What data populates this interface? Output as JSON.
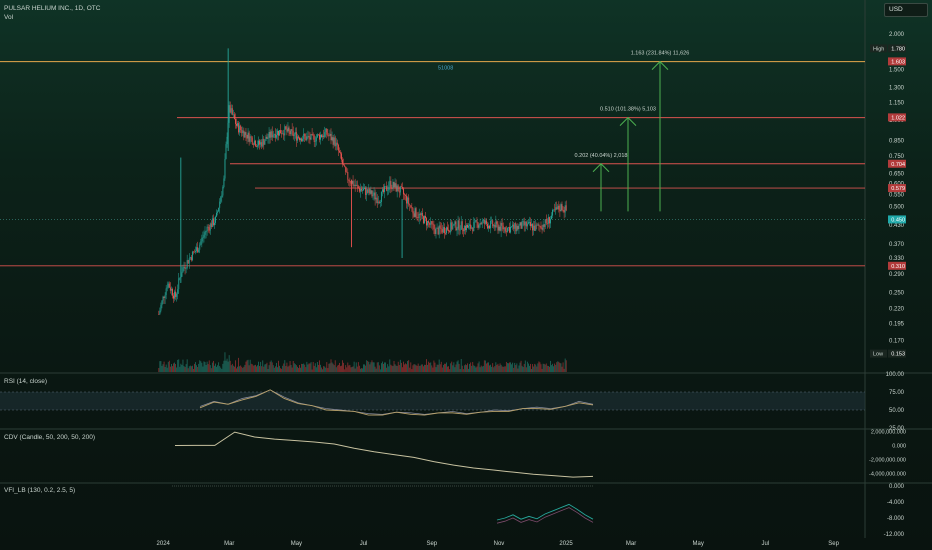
{
  "header": {
    "symbol_line": "PULSAR HELIUM INC., 1D, OTC",
    "volume_label": "Vol",
    "currency": "USD"
  },
  "panes": {
    "rsi_label": "RSI (14, close)",
    "cdv_label": "CDV (Candle, 50, 200, 50, 200)",
    "vfi_label": "VFI_LB (130, 0.2, 2.5, 5)"
  },
  "colors": {
    "up": "#26a69a",
    "down": "#ef5350",
    "level_line": "#d9534f",
    "top_level_line": "#e5a84b",
    "arrow": "#4caf50",
    "rsi_line": "#b7a06a",
    "rsi_signal": "#8c8fa3",
    "cdv_line": "#c8c2a0"
  },
  "chart_data": [
    {
      "type": "candlestick",
      "scale": "log",
      "y_ticks": [
        "2.000",
        "1.780",
        "1.500",
        "1.300",
        "1.150",
        "1.000",
        "0.850",
        "0.750",
        "0.650",
        "0.600",
        "0.550",
        "0.500",
        "0.430",
        "0.370",
        "0.330",
        "0.290",
        "0.250",
        "0.220",
        "0.195",
        "0.170",
        "0.153"
      ],
      "x_ticks": [
        "2024",
        "Mar",
        "May",
        "Jul",
        "Sep",
        "Nov",
        "2025",
        "Mar",
        "May",
        "Jul",
        "Sep"
      ],
      "price_labels": [
        {
          "name": "High",
          "value": "1.780"
        },
        {
          "name": "",
          "value": "1.603"
        },
        {
          "name": "",
          "value": "1.022"
        },
        {
          "name": "",
          "value": "0.704"
        },
        {
          "name": "",
          "value": "0.579"
        },
        {
          "name": "",
          "value": "0.450"
        },
        {
          "name": "",
          "value": "0.310"
        },
        {
          "name": "Low",
          "value": "0.153"
        }
      ],
      "horizontal_levels": [
        1.6,
        1.02,
        0.704,
        0.579,
        0.31
      ],
      "annotations": [
        {
          "text": "1.163 (231.84%) 11,626",
          "from": 0.48,
          "to": 1.6
        },
        {
          "text": "0.510 (101.38%) 5,103",
          "from": 0.48,
          "to": 1.02
        },
        {
          "text": "0.202 (40.04%) 2,018",
          "from": 0.48,
          "to": 0.704
        }
      ],
      "level_text": "51008",
      "price_path": [
        [
          "2023-12-28",
          0.21
        ],
        [
          "2024-01-05",
          0.27
        ],
        [
          "2024-01-12",
          0.24
        ],
        [
          "2024-01-18",
          0.3
        ],
        [
          "2024-01-25",
          0.33
        ],
        [
          "2024-02-02",
          0.36
        ],
        [
          "2024-02-10",
          0.42
        ],
        [
          "2024-02-18",
          0.45
        ],
        [
          "2024-02-25",
          0.6
        ],
        [
          "2024-03-01",
          1.1
        ],
        [
          "2024-03-08",
          0.95
        ],
        [
          "2024-03-18",
          0.88
        ],
        [
          "2024-03-28",
          0.82
        ],
        [
          "2024-04-10",
          0.9
        ],
        [
          "2024-04-20",
          0.92
        ],
        [
          "2024-05-01",
          0.88
        ],
        [
          "2024-05-15",
          0.86
        ],
        [
          "2024-05-28",
          0.9
        ],
        [
          "2024-06-05",
          0.84
        ],
        [
          "2024-06-15",
          0.64
        ],
        [
          "2024-06-25",
          0.58
        ],
        [
          "2024-07-05",
          0.56
        ],
        [
          "2024-07-15",
          0.53
        ],
        [
          "2024-07-25",
          0.6
        ],
        [
          "2024-08-05",
          0.56
        ],
        [
          "2024-08-15",
          0.48
        ],
        [
          "2024-08-25",
          0.45
        ],
        [
          "2024-09-05",
          0.41
        ],
        [
          "2024-09-15",
          0.42
        ],
        [
          "2024-09-25",
          0.43
        ],
        [
          "2024-10-05",
          0.42
        ],
        [
          "2024-10-15",
          0.44
        ],
        [
          "2024-10-25",
          0.43
        ],
        [
          "2024-11-05",
          0.42
        ],
        [
          "2024-11-15",
          0.42
        ],
        [
          "2024-11-25",
          0.43
        ],
        [
          "2024-12-05",
          0.42
        ],
        [
          "2024-12-15",
          0.44
        ],
        [
          "2024-12-22",
          0.48
        ],
        [
          "2024-12-28",
          0.5
        ],
        [
          "2025-01-02",
          0.48
        ]
      ]
    },
    {
      "type": "line",
      "name": "RSI (14, close)",
      "y_ticks": [
        "100.00",
        "75.00",
        "50.00",
        "25.00"
      ],
      "ylim": [
        25,
        100
      ],
      "bands": [
        70,
        50
      ],
      "values": [
        55,
        62,
        58,
        66,
        70,
        78,
        68,
        60,
        56,
        52,
        50,
        48,
        45,
        44,
        47,
        46,
        44,
        46,
        48,
        45,
        47,
        50,
        49,
        52,
        54,
        52,
        55,
        62,
        58
      ]
    },
    {
      "type": "line",
      "name": "CDV (Candle, 50, 200, 50, 200)",
      "y_ticks": [
        "2,000,000.000",
        "0.000",
        "-2,000,000.000",
        "-4,000,000.000"
      ],
      "values": [
        0,
        20000,
        10000,
        1900000,
        1200000,
        900000,
        700000,
        500000,
        200000,
        -400000,
        -900000,
        -1300000,
        -1700000,
        -2300000,
        -2800000,
        -3200000,
        -3500000,
        -3800000,
        -4100000,
        -4300000,
        -4500000,
        -4400000
      ]
    },
    {
      "type": "line",
      "name": "VFI_LB (130, 0.2, 2.5, 5)",
      "y_ticks": [
        "0.000",
        "-4.000",
        "-8.000",
        "-12.000"
      ],
      "ylim": [
        -12,
        0.5
      ],
      "values": [
        -8.5,
        -8.0,
        -7.2,
        -8.3,
        -7.6,
        -8.2,
        -7.0,
        -6.2,
        -5.4,
        -4.6,
        -5.8,
        -7.2,
        -8.3
      ]
    }
  ]
}
